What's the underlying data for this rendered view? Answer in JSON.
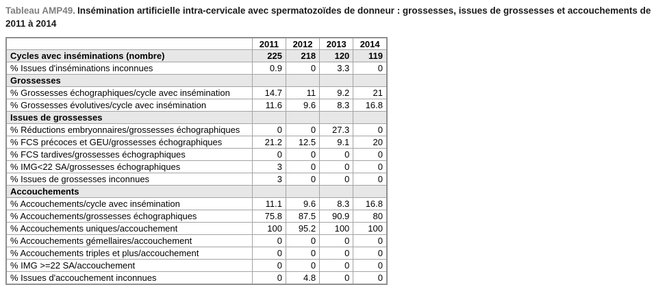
{
  "title": {
    "label": "Tableau AMP49.",
    "text": "Insémination artificielle intra-cervicale avec spermatozoïdes de donneur : grossesses, issues de grossesses et accouchements de 2011 à 2014"
  },
  "table": {
    "year_headers": [
      "2011",
      "2012",
      "2013",
      "2014"
    ],
    "rows": [
      {
        "type": "header-data",
        "label": "Cycles avec inséminations (nombre)",
        "values": [
          "225",
          "218",
          "120",
          "119"
        ]
      },
      {
        "type": "data",
        "label": "% Issues d'inséminations inconnues",
        "values": [
          "0.9",
          "0",
          "3.3",
          "0"
        ]
      },
      {
        "type": "section",
        "label": "Grossesses",
        "values": [
          "",
          "",
          "",
          ""
        ]
      },
      {
        "type": "data",
        "label": "% Grossesses échographiques/cycle avec insémination",
        "values": [
          "14.7",
          "11",
          "9.2",
          "21"
        ]
      },
      {
        "type": "data",
        "label": "% Grossesses évolutives/cycle avec insémination",
        "values": [
          "11.6",
          "9.6",
          "8.3",
          "16.8"
        ]
      },
      {
        "type": "section",
        "label": "Issues de grossesses",
        "values": [
          "",
          "",
          "",
          ""
        ]
      },
      {
        "type": "data",
        "label": "% Réductions embryonnaires/grossesses échographiques",
        "values": [
          "0",
          "0",
          "27.3",
          "0"
        ]
      },
      {
        "type": "data",
        "label": "% FCS précoces et GEU/grossesses échographiques",
        "values": [
          "21.2",
          "12.5",
          "9.1",
          "20"
        ]
      },
      {
        "type": "data",
        "label": "% FCS tardives/grossesses échographiques",
        "values": [
          "0",
          "0",
          "0",
          "0"
        ]
      },
      {
        "type": "data",
        "label": "% IMG<22 SA/grossesses échographiques",
        "values": [
          "3",
          "0",
          "0",
          "0"
        ]
      },
      {
        "type": "data",
        "label": "% Issues de grossesses inconnues",
        "values": [
          "3",
          "0",
          "0",
          "0"
        ]
      },
      {
        "type": "section",
        "label": "Accouchements",
        "values": [
          "",
          "",
          "",
          ""
        ]
      },
      {
        "type": "data",
        "label": "% Accouchements/cycle avec insémination",
        "values": [
          "11.1",
          "9.6",
          "8.3",
          "16.8"
        ]
      },
      {
        "type": "data",
        "label": "% Accouchements/grossesses échographiques",
        "values": [
          "75.8",
          "87.5",
          "90.9",
          "80"
        ]
      },
      {
        "type": "data",
        "label": "% Accouchements uniques/accouchement",
        "values": [
          "100",
          "95.2",
          "100",
          "100"
        ]
      },
      {
        "type": "data",
        "label": "% Accouchements gémellaires/accouchement",
        "values": [
          "0",
          "0",
          "0",
          "0"
        ]
      },
      {
        "type": "data",
        "label": "% Accouchements triples et plus/accouchement",
        "values": [
          "0",
          "0",
          "0",
          "0"
        ]
      },
      {
        "type": "data",
        "label": "% IMG >=22 SA/accouchement",
        "values": [
          "0",
          "0",
          "0",
          "0"
        ]
      },
      {
        "type": "data",
        "label": "% Issues d'accouchement inconnues",
        "values": [
          "0",
          "4.8",
          "0",
          "0"
        ]
      }
    ]
  },
  "colors": {
    "title_label_gray": "#7f7f7f",
    "title_text": "#1a1a1a",
    "section_row_bg": "#e7e7e7",
    "border": "#a3a3a3",
    "outer_border": "#8f8f8f",
    "text": "#000000",
    "background": "#ffffff"
  }
}
